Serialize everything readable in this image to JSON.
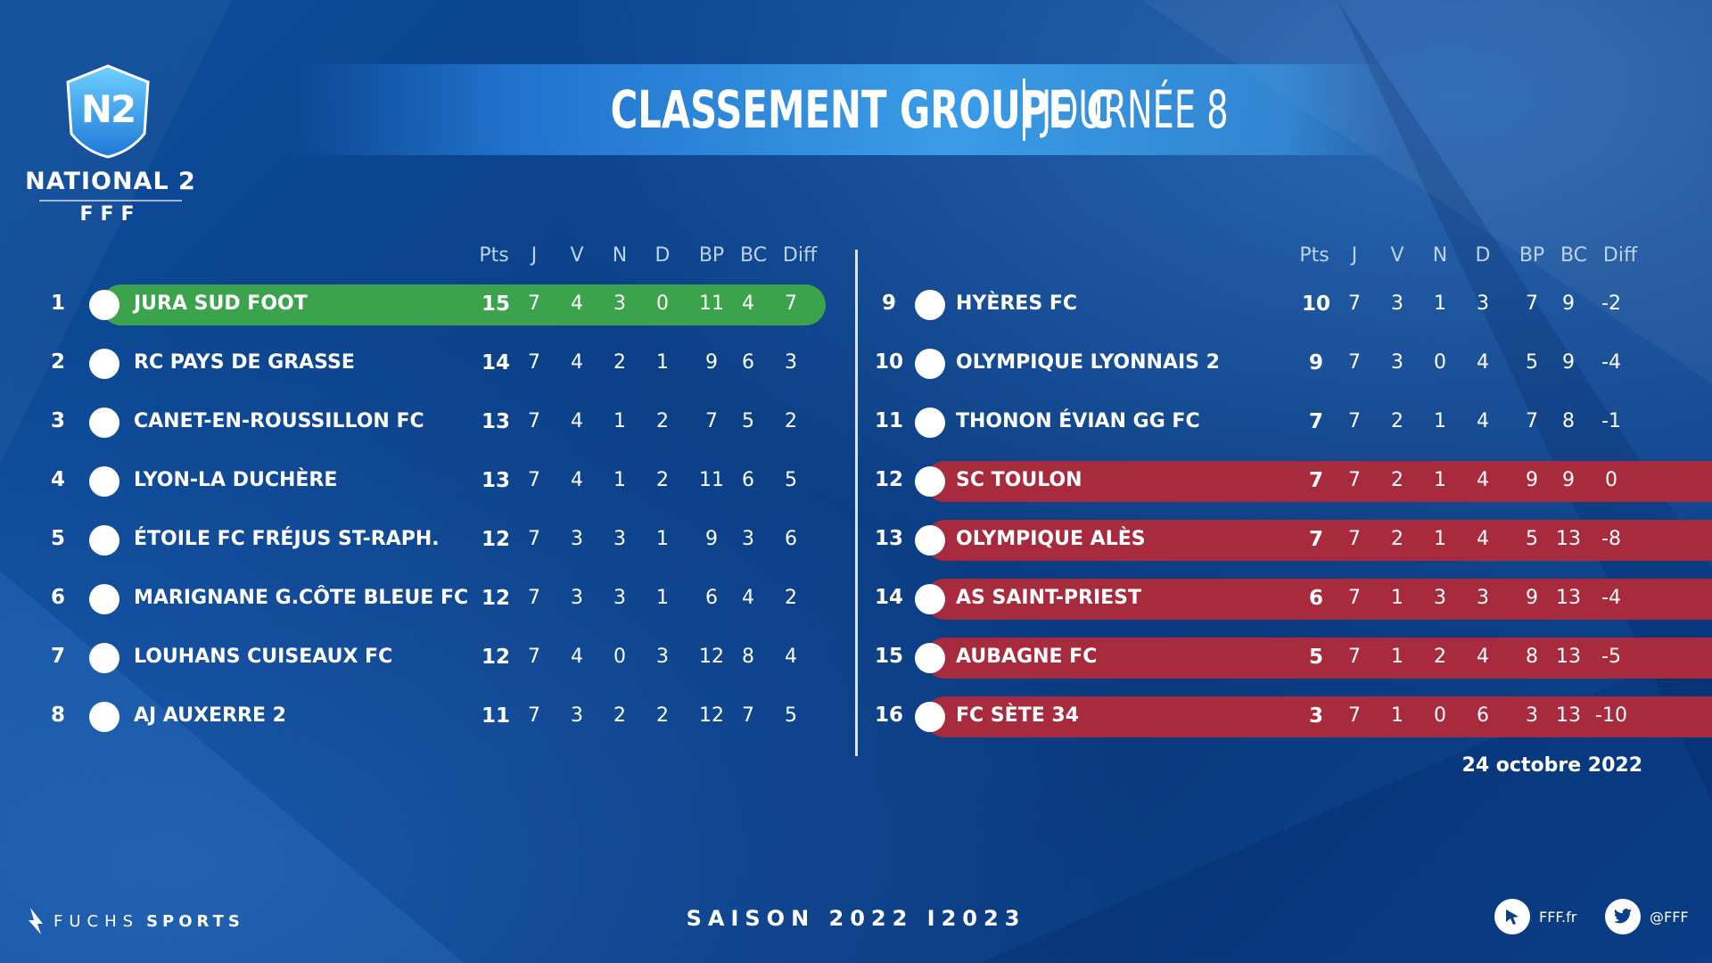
{
  "header": {
    "title_main": "CLASSEMENT GROUPE C",
    "title_sub": "JOURNÉE 8",
    "logo": {
      "badge": "N2",
      "league": "NATIONAL 2",
      "federation": "FFF"
    }
  },
  "columns": [
    "Pts",
    "J",
    "V",
    "N",
    "D",
    "BP",
    "BC",
    "Diff"
  ],
  "left_table": [
    {
      "pos": "1",
      "team": "JURA SUD FOOT",
      "pts": "15",
      "j": "7",
      "v": "4",
      "n": "3",
      "d": "0",
      "bp": "11",
      "bc": "4",
      "diff": "7",
      "highlight": "green"
    },
    {
      "pos": "2",
      "team": "RC PAYS DE GRASSE",
      "pts": "14",
      "j": "7",
      "v": "4",
      "n": "2",
      "d": "1",
      "bp": "9",
      "bc": "6",
      "diff": "3",
      "highlight": ""
    },
    {
      "pos": "3",
      "team": "CANET-EN-ROUSSILLON FC",
      "pts": "13",
      "j": "7",
      "v": "4",
      "n": "1",
      "d": "2",
      "bp": "7",
      "bc": "5",
      "diff": "2",
      "highlight": ""
    },
    {
      "pos": "4",
      "team": "LYON-LA DUCHÈRE",
      "pts": "13",
      "j": "7",
      "v": "4",
      "n": "1",
      "d": "2",
      "bp": "11",
      "bc": "6",
      "diff": "5",
      "highlight": ""
    },
    {
      "pos": "5",
      "team": "ÉTOILE FC FRÉJUS ST-RAPH.",
      "pts": "12",
      "j": "7",
      "v": "3",
      "n": "3",
      "d": "1",
      "bp": "9",
      "bc": "3",
      "diff": "6",
      "highlight": ""
    },
    {
      "pos": "6",
      "team": "MARIGNANE G.CÔTE BLEUE FC",
      "pts": "12",
      "j": "7",
      "v": "3",
      "n": "3",
      "d": "1",
      "bp": "6",
      "bc": "4",
      "diff": "2",
      "highlight": ""
    },
    {
      "pos": "7",
      "team": "LOUHANS CUISEAUX FC",
      "pts": "12",
      "j": "7",
      "v": "4",
      "n": "0",
      "d": "3",
      "bp": "12",
      "bc": "8",
      "diff": "4",
      "highlight": ""
    },
    {
      "pos": "8",
      "team": "AJ AUXERRE 2",
      "pts": "11",
      "j": "7",
      "v": "3",
      "n": "2",
      "d": "2",
      "bp": "12",
      "bc": "7",
      "diff": "5",
      "highlight": ""
    }
  ],
  "right_table": [
    {
      "pos": "9",
      "team": "HYÈRES FC",
      "pts": "10",
      "j": "7",
      "v": "3",
      "n": "1",
      "d": "3",
      "bp": "7",
      "bc": "9",
      "diff": "-2",
      "highlight": ""
    },
    {
      "pos": "10",
      "team": "OLYMPIQUE LYONNAIS 2",
      "pts": "9",
      "j": "7",
      "v": "3",
      "n": "0",
      "d": "4",
      "bp": "5",
      "bc": "9",
      "diff": "-4",
      "highlight": ""
    },
    {
      "pos": "11",
      "team": "THONON ÉVIAN GG FC",
      "pts": "7",
      "j": "7",
      "v": "2",
      "n": "1",
      "d": "4",
      "bp": "7",
      "bc": "8",
      "diff": "-1",
      "highlight": ""
    },
    {
      "pos": "12",
      "team": "SC TOULON",
      "pts": "7",
      "j": "7",
      "v": "2",
      "n": "1",
      "d": "4",
      "bp": "9",
      "bc": "9",
      "diff": "0",
      "highlight": "red"
    },
    {
      "pos": "13",
      "team": "OLYMPIQUE ALÈS",
      "pts": "7",
      "j": "7",
      "v": "2",
      "n": "1",
      "d": "4",
      "bp": "5",
      "bc": "13",
      "diff": "-8",
      "highlight": "red"
    },
    {
      "pos": "14",
      "team": "AS SAINT-PRIEST",
      "pts": "6",
      "j": "7",
      "v": "1",
      "n": "3",
      "d": "3",
      "bp": "9",
      "bc": "13",
      "diff": "-4",
      "highlight": "red"
    },
    {
      "pos": "15",
      "team": "AUBAGNE FC",
      "pts": "5",
      "j": "7",
      "v": "1",
      "n": "2",
      "d": "4",
      "bp": "8",
      "bc": "13",
      "diff": "-5",
      "highlight": "red"
    },
    {
      "pos": "16",
      "team": "FC SÈTE 34",
      "pts": "3",
      "j": "7",
      "v": "1",
      "n": "0",
      "d": "6",
      "bp": "3",
      "bc": "13",
      "diff": "-10",
      "highlight": "red"
    }
  ],
  "date": "24 octobre 2022",
  "footer": {
    "brand_light": "FUCHS",
    "brand_bold": "SPORTS",
    "season": "SAISON 2022 I2023",
    "website": "FFF.fr",
    "twitter": "@FFF"
  },
  "colors": {
    "promotion": "#3ba34c",
    "relegation": "#a82a3d",
    "background": "#0b3f86"
  },
  "icons": [
    "fuchs-sports-logo",
    "cursor-icon",
    "twitter-bird-icon"
  ]
}
